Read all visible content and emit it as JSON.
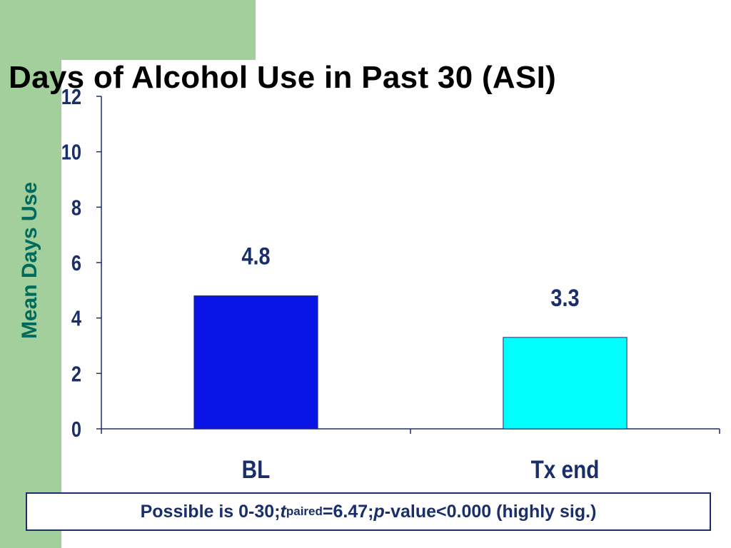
{
  "slide": {
    "title": "Days of Alcohol Use in Past 30 (ASI)",
    "note": {
      "prefix": "Possible is 0-30; ",
      "t_symbol": "t",
      "t_subscript": "paired",
      "t_value": "=6.47; ",
      "p_symbol": "p",
      "p_text": "-value<0.000 (highly sig.)"
    },
    "colors": {
      "accent_green": "#a2cf9b",
      "ylabel": "#006a5c",
      "text_navy": "#1a2e6a"
    }
  },
  "chart_data": {
    "type": "bar",
    "title": "Days of Alcohol Use in Past 30 (ASI)",
    "xlabel": "",
    "ylabel": "Mean Days Use",
    "ylim": [
      0,
      12
    ],
    "yticks": [
      0,
      2,
      4,
      6,
      8,
      10,
      12
    ],
    "categories": [
      "BL",
      "Tx end"
    ],
    "values": [
      4.8,
      3.3
    ],
    "data_labels": [
      "4.8",
      "3.3"
    ],
    "bar_colors": [
      "#0a14e6",
      "#00ffff"
    ],
    "grid": false,
    "legend": "none"
  }
}
